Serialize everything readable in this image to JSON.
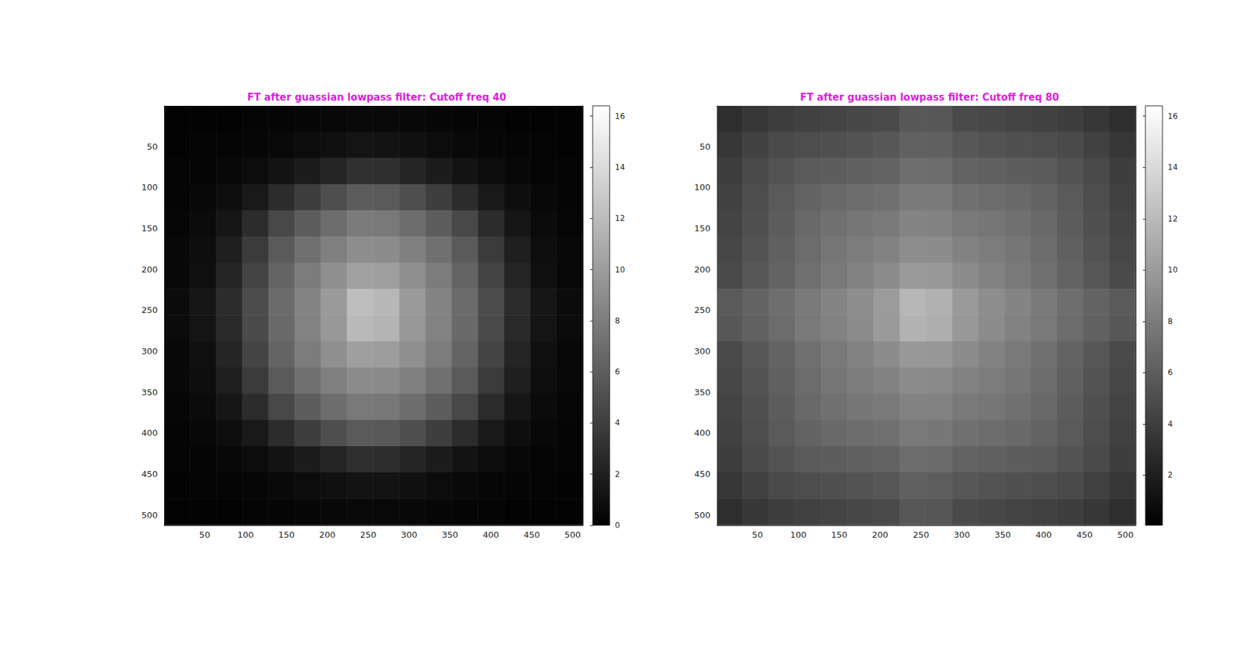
{
  "chart_data": [
    {
      "type": "heatmap",
      "title": "FT after guassian lowpass filter: Cutoff freq 40",
      "xlim": [
        0.5,
        512.5
      ],
      "ylim": [
        0.5,
        512.5
      ],
      "xticks": [
        50,
        100,
        150,
        200,
        250,
        300,
        350,
        400,
        450,
        500
      ],
      "yticks": [
        50,
        100,
        150,
        200,
        250,
        300,
        350,
        400,
        450,
        500
      ],
      "x": [
        16,
        48,
        80,
        112,
        144,
        176,
        208,
        240,
        272,
        304,
        336,
        368,
        400,
        432,
        464,
        496
      ],
      "y": [
        16,
        48,
        80,
        112,
        144,
        176,
        208,
        240,
        272,
        304,
        336,
        368,
        400,
        432,
        464,
        496
      ],
      "z": [
        [
          0.2,
          0.2,
          0.2,
          0.3,
          0.3,
          0.4,
          0.5,
          0.6,
          0.6,
          0.5,
          0.4,
          0.3,
          0.3,
          0.2,
          0.2,
          0.2
        ],
        [
          0.2,
          0.3,
          0.3,
          0.4,
          0.6,
          0.8,
          1.0,
          1.3,
          1.2,
          1.0,
          0.8,
          0.6,
          0.4,
          0.3,
          0.3,
          0.2
        ],
        [
          0.3,
          0.3,
          0.5,
          0.8,
          1.2,
          1.8,
          2.4,
          3.1,
          3.0,
          2.4,
          1.8,
          1.2,
          0.8,
          0.5,
          0.3,
          0.3
        ],
        [
          0.3,
          0.5,
          0.9,
          1.6,
          2.8,
          4.0,
          5.0,
          5.9,
          5.8,
          5.0,
          4.0,
          2.8,
          1.6,
          0.9,
          0.5,
          0.3
        ],
        [
          0.4,
          0.7,
          1.4,
          2.8,
          4.6,
          6.0,
          7.0,
          7.9,
          7.8,
          7.0,
          6.0,
          4.6,
          2.8,
          1.4,
          0.7,
          0.4
        ],
        [
          0.5,
          0.9,
          2.0,
          3.8,
          5.8,
          7.2,
          8.2,
          9.1,
          9.0,
          8.2,
          7.2,
          5.8,
          3.8,
          2.0,
          0.9,
          0.5
        ],
        [
          0.5,
          1.0,
          2.4,
          4.4,
          6.4,
          8.0,
          9.2,
          10.3,
          10.2,
          9.2,
          8.0,
          6.4,
          4.4,
          2.4,
          1.0,
          0.5
        ],
        [
          0.7,
          1.4,
          2.8,
          4.9,
          6.9,
          8.5,
          9.9,
          12.2,
          11.8,
          9.9,
          8.5,
          6.9,
          4.9,
          2.8,
          1.4,
          0.7
        ],
        [
          0.7,
          1.3,
          2.7,
          4.8,
          6.8,
          8.4,
          9.8,
          11.9,
          11.6,
          9.8,
          8.4,
          6.8,
          4.8,
          2.7,
          1.3,
          0.7
        ],
        [
          0.5,
          1.0,
          2.4,
          4.4,
          6.4,
          8.0,
          9.2,
          10.2,
          10.1,
          9.2,
          8.0,
          6.4,
          4.4,
          2.4,
          1.0,
          0.5
        ],
        [
          0.5,
          0.9,
          2.0,
          3.8,
          5.8,
          7.2,
          8.2,
          9.0,
          8.9,
          8.2,
          7.2,
          5.8,
          3.8,
          2.0,
          0.9,
          0.5
        ],
        [
          0.4,
          0.7,
          1.4,
          2.8,
          4.6,
          6.0,
          7.0,
          7.8,
          7.7,
          7.0,
          6.0,
          4.6,
          2.8,
          1.4,
          0.7,
          0.4
        ],
        [
          0.3,
          0.5,
          0.9,
          1.6,
          2.8,
          4.0,
          5.0,
          5.8,
          5.7,
          5.0,
          4.0,
          2.8,
          1.6,
          0.9,
          0.5,
          0.3
        ],
        [
          0.3,
          0.3,
          0.5,
          0.8,
          1.2,
          1.8,
          2.4,
          3.0,
          2.9,
          2.4,
          1.8,
          1.2,
          0.8,
          0.5,
          0.3,
          0.3
        ],
        [
          0.2,
          0.3,
          0.3,
          0.4,
          0.6,
          0.8,
          1.0,
          1.2,
          1.2,
          1.0,
          0.8,
          0.6,
          0.4,
          0.3,
          0.3,
          0.2
        ],
        [
          0.2,
          0.2,
          0.2,
          0.3,
          0.3,
          0.4,
          0.5,
          0.6,
          0.6,
          0.5,
          0.4,
          0.3,
          0.3,
          0.2,
          0.2,
          0.2
        ]
      ],
      "colorbar_lim": [
        0,
        16.4
      ],
      "colorbar_ticks": [
        0,
        2,
        4,
        6,
        8,
        10,
        12,
        14,
        16
      ]
    },
    {
      "type": "heatmap",
      "title": "FT after guassian lowpass filter: Cutoff freq 80",
      "xlim": [
        0.5,
        512.5
      ],
      "ylim": [
        0.5,
        512.5
      ],
      "xticks": [
        50,
        100,
        150,
        200,
        250,
        300,
        350,
        400,
        450,
        500
      ],
      "yticks": [
        50,
        100,
        150,
        200,
        250,
        300,
        350,
        400,
        450,
        500
      ],
      "x": [
        16,
        48,
        80,
        112,
        144,
        176,
        208,
        240,
        272,
        304,
        336,
        368,
        400,
        432,
        464,
        496
      ],
      "y": [
        16,
        48,
        80,
        112,
        144,
        176,
        208,
        240,
        272,
        304,
        336,
        368,
        400,
        432,
        464,
        496
      ],
      "z": [
        [
          3.0,
          3.6,
          4.0,
          4.2,
          4.4,
          4.6,
          4.8,
          5.7,
          5.6,
          4.8,
          4.6,
          4.4,
          4.2,
          4.0,
          3.6,
          3.0
        ],
        [
          3.6,
          4.2,
          4.8,
          5.0,
          5.2,
          5.4,
          5.6,
          6.3,
          6.2,
          5.6,
          5.4,
          5.2,
          5.0,
          4.8,
          4.2,
          3.6
        ],
        [
          4.0,
          4.8,
          5.4,
          5.8,
          6.0,
          6.2,
          6.4,
          7.1,
          7.0,
          6.4,
          6.2,
          6.0,
          5.8,
          5.4,
          4.8,
          4.0
        ],
        [
          4.2,
          5.0,
          5.8,
          6.4,
          6.8,
          7.0,
          7.2,
          7.9,
          7.8,
          7.2,
          7.0,
          6.8,
          6.4,
          5.8,
          5.0,
          4.2
        ],
        [
          4.4,
          5.2,
          6.0,
          6.8,
          7.2,
          7.6,
          7.8,
          8.5,
          8.4,
          7.8,
          7.6,
          7.2,
          6.8,
          6.0,
          5.2,
          4.4
        ],
        [
          4.6,
          5.4,
          6.2,
          7.0,
          7.6,
          8.0,
          8.4,
          9.1,
          9.0,
          8.4,
          8.0,
          7.6,
          7.0,
          6.2,
          5.4,
          4.6
        ],
        [
          4.8,
          5.6,
          6.4,
          7.2,
          7.8,
          8.4,
          9.0,
          9.9,
          9.8,
          9.0,
          8.4,
          7.8,
          7.2,
          6.4,
          5.6,
          4.8
        ],
        [
          5.8,
          6.4,
          7.1,
          7.9,
          8.5,
          9.1,
          10.0,
          11.8,
          11.4,
          9.9,
          9.1,
          8.5,
          7.9,
          7.1,
          6.4,
          5.8
        ],
        [
          5.7,
          6.3,
          7.0,
          7.8,
          8.4,
          9.0,
          9.9,
          11.5,
          11.2,
          9.8,
          9.0,
          8.4,
          7.8,
          7.0,
          6.3,
          5.7
        ],
        [
          4.8,
          5.6,
          6.4,
          7.2,
          7.8,
          8.4,
          9.0,
          9.8,
          9.7,
          9.0,
          8.4,
          7.8,
          7.2,
          6.4,
          5.6,
          4.8
        ],
        [
          4.6,
          5.4,
          6.2,
          7.0,
          7.6,
          8.0,
          8.4,
          9.0,
          8.9,
          8.4,
          8.0,
          7.6,
          7.0,
          6.2,
          5.4,
          4.6
        ],
        [
          4.4,
          5.2,
          6.0,
          6.8,
          7.2,
          7.6,
          7.8,
          8.4,
          8.3,
          7.8,
          7.6,
          7.2,
          6.8,
          6.0,
          5.2,
          4.4
        ],
        [
          4.2,
          5.0,
          5.8,
          6.4,
          6.8,
          7.0,
          7.2,
          7.8,
          7.7,
          7.2,
          7.0,
          6.8,
          6.4,
          5.8,
          5.0,
          4.2
        ],
        [
          4.0,
          4.8,
          5.4,
          5.8,
          6.0,
          6.2,
          6.4,
          7.0,
          6.9,
          6.4,
          6.2,
          6.0,
          5.8,
          5.4,
          4.8,
          4.0
        ],
        [
          3.6,
          4.2,
          4.8,
          5.0,
          5.2,
          5.4,
          5.6,
          6.2,
          6.1,
          5.6,
          5.4,
          5.2,
          5.0,
          4.8,
          4.2,
          3.6
        ],
        [
          3.0,
          3.6,
          4.0,
          4.2,
          4.4,
          4.6,
          4.8,
          5.6,
          5.5,
          4.8,
          4.6,
          4.4,
          4.2,
          4.0,
          3.6,
          3.0
        ]
      ],
      "colorbar_lim": [
        0.05,
        16.4
      ],
      "colorbar_ticks": [
        2,
        4,
        6,
        8,
        10,
        12,
        14,
        16
      ]
    }
  ]
}
